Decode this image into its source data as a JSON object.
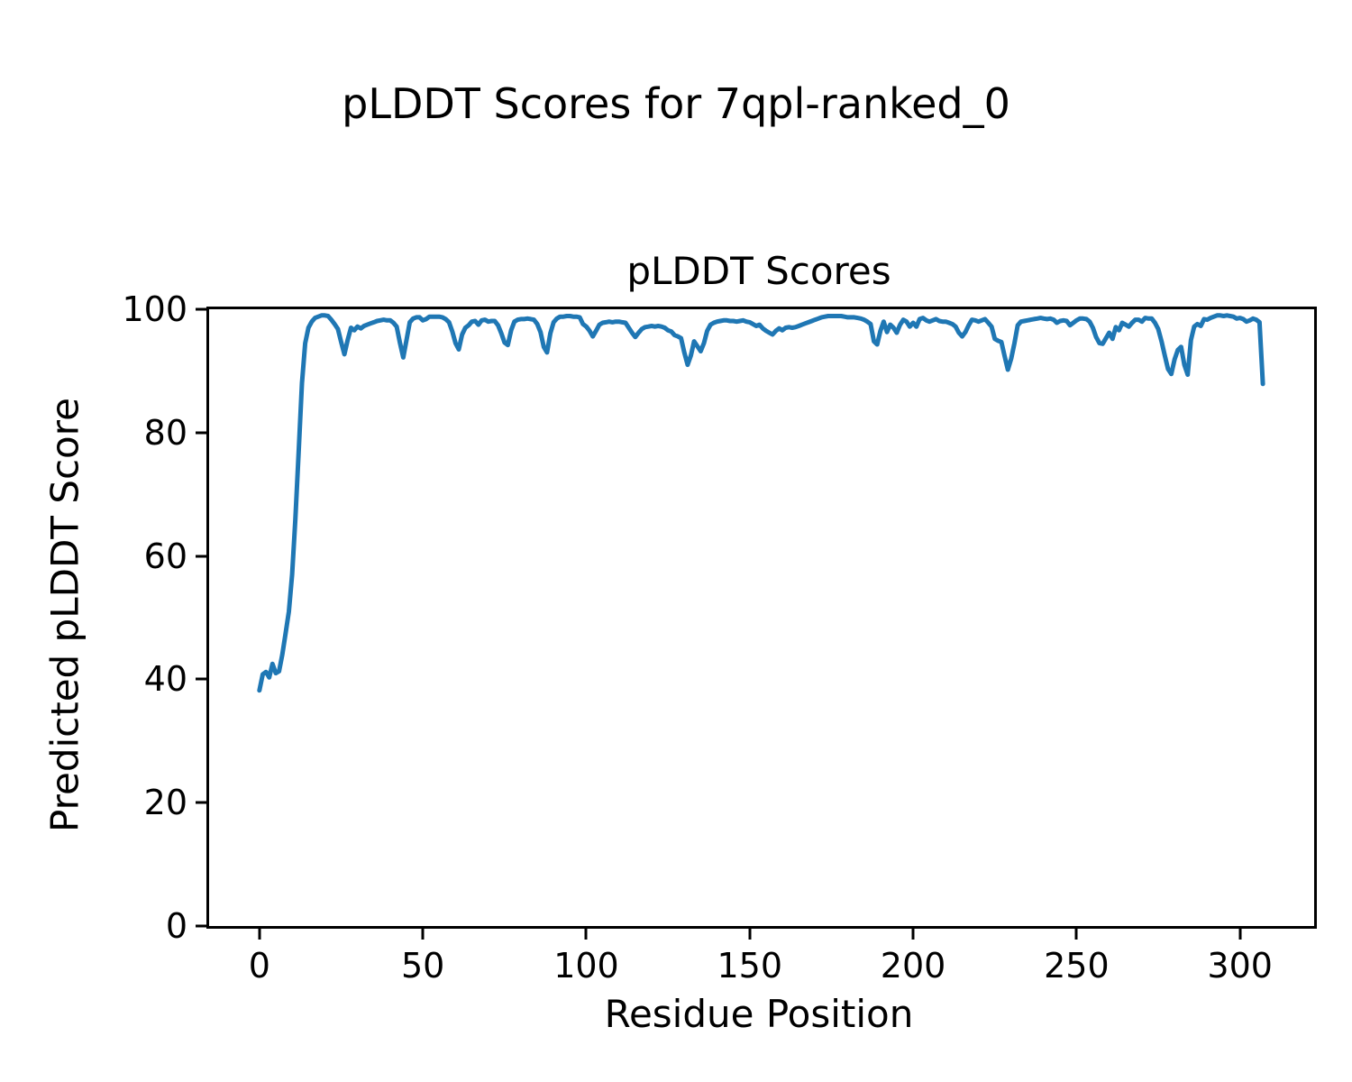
{
  "figure": {
    "suptitle": "pLDDT Scores for 7qpl-ranked_0",
    "background_color": "#ffffff",
    "text_color": "#000000",
    "spine_color": "#000000"
  },
  "chart_data": {
    "type": "line",
    "title": "pLDDT Scores",
    "xlabel": "Residue Position",
    "ylabel": "Predicted pLDDT Score",
    "xlim": [
      -15.4,
      322.7
    ],
    "ylim": [
      0,
      100
    ],
    "x_ticks": [
      0,
      50,
      100,
      150,
      200,
      250,
      300
    ],
    "y_ticks": [
      0,
      20,
      40,
      60,
      80,
      100
    ],
    "grid": false,
    "legend": "none",
    "line_color": "#1f77b4",
    "line_width": 5,
    "series": [
      {
        "name": "pLDDT",
        "x_start": 0,
        "x_step": 1,
        "y": [
          38.2,
          40.8,
          41.2,
          40.3,
          42.5,
          41.0,
          41.3,
          44.0,
          47.5,
          51.0,
          57.0,
          66.0,
          77.0,
          88.0,
          94.5,
          97.0,
          98.0,
          98.6,
          98.8,
          99.0,
          99.0,
          98.9,
          98.3,
          97.6,
          96.8,
          94.7,
          92.7,
          95.0,
          97.0,
          96.6,
          97.2,
          96.9,
          97.3,
          97.5,
          97.7,
          97.9,
          98.1,
          98.2,
          98.3,
          98.2,
          98.2,
          97.8,
          97.2,
          94.5,
          92.2,
          95.0,
          97.9,
          98.5,
          98.7,
          98.7,
          98.2,
          98.4,
          98.8,
          98.8,
          98.8,
          98.8,
          98.7,
          98.4,
          97.9,
          96.4,
          94.5,
          93.5,
          95.9,
          97.0,
          97.4,
          98.0,
          98.1,
          97.5,
          98.2,
          98.3,
          98.0,
          98.1,
          98.1,
          97.4,
          96.1,
          94.6,
          94.2,
          96.6,
          98.0,
          98.3,
          98.4,
          98.4,
          98.5,
          98.4,
          98.3,
          97.6,
          96.3,
          93.9,
          93.0,
          96.1,
          97.9,
          98.5,
          98.8,
          98.8,
          98.9,
          98.9,
          98.8,
          98.8,
          98.7,
          97.6,
          97.2,
          96.5,
          95.6,
          96.5,
          97.5,
          97.8,
          97.9,
          98.0,
          97.9,
          98.0,
          98.0,
          97.9,
          97.8,
          97.0,
          96.2,
          95.5,
          96.2,
          96.8,
          97.1,
          97.2,
          97.3,
          97.2,
          97.3,
          97.2,
          97.0,
          96.6,
          96.4,
          95.8,
          95.6,
          95.3,
          93.0,
          91.0,
          92.5,
          94.8,
          94.0,
          93.2,
          94.5,
          96.5,
          97.5,
          97.8,
          98.0,
          98.1,
          98.2,
          98.2,
          98.1,
          98.1,
          98.0,
          98.1,
          98.2,
          98.0,
          97.9,
          97.6,
          97.3,
          97.5,
          96.9,
          96.5,
          96.2,
          95.9,
          96.5,
          96.9,
          96.6,
          97.0,
          97.1,
          97.0,
          97.1,
          97.3,
          97.5,
          97.7,
          97.9,
          98.1,
          98.3,
          98.5,
          98.7,
          98.8,
          98.9,
          98.9,
          98.9,
          98.9,
          98.9,
          98.8,
          98.7,
          98.7,
          98.7,
          98.6,
          98.5,
          98.3,
          98.0,
          97.6,
          94.8,
          94.3,
          96.5,
          98.0,
          96.3,
          97.5,
          97.0,
          96.2,
          97.5,
          98.3,
          98.0,
          97.2,
          97.8,
          97.2,
          98.4,
          98.6,
          98.2,
          98.0,
          98.2,
          98.4,
          98.1,
          98.0,
          98.0,
          97.8,
          97.6,
          97.2,
          96.2,
          95.6,
          96.3,
          97.4,
          98.3,
          98.2,
          98.0,
          98.2,
          98.4,
          97.8,
          97.2,
          95.2,
          94.9,
          94.7,
          92.4,
          90.2,
          92.0,
          94.5,
          97.4,
          98.0,
          98.1,
          98.2,
          98.3,
          98.4,
          98.5,
          98.6,
          98.5,
          98.4,
          98.5,
          98.3,
          97.8,
          98.1,
          98.2,
          98.1,
          97.4,
          97.8,
          98.2,
          98.5,
          98.5,
          98.4,
          98.0,
          97.0,
          95.5,
          94.5,
          94.4,
          95.3,
          96.2,
          95.2,
          97.1,
          96.6,
          97.8,
          97.5,
          97.2,
          97.8,
          98.3,
          98.3,
          98.0,
          98.6,
          98.5,
          98.5,
          97.8,
          96.8,
          94.8,
          92.5,
          90.3,
          89.5,
          91.9,
          93.4,
          93.9,
          91.0,
          89.4,
          95.0,
          97.2,
          97.6,
          97.3,
          98.4,
          98.3,
          98.6,
          98.8,
          99.0,
          99.0,
          98.9,
          99.0,
          98.9,
          98.8,
          98.5,
          98.6,
          98.4,
          98.0,
          98.2,
          98.5,
          98.3,
          97.9,
          87.9
        ]
      }
    ]
  }
}
